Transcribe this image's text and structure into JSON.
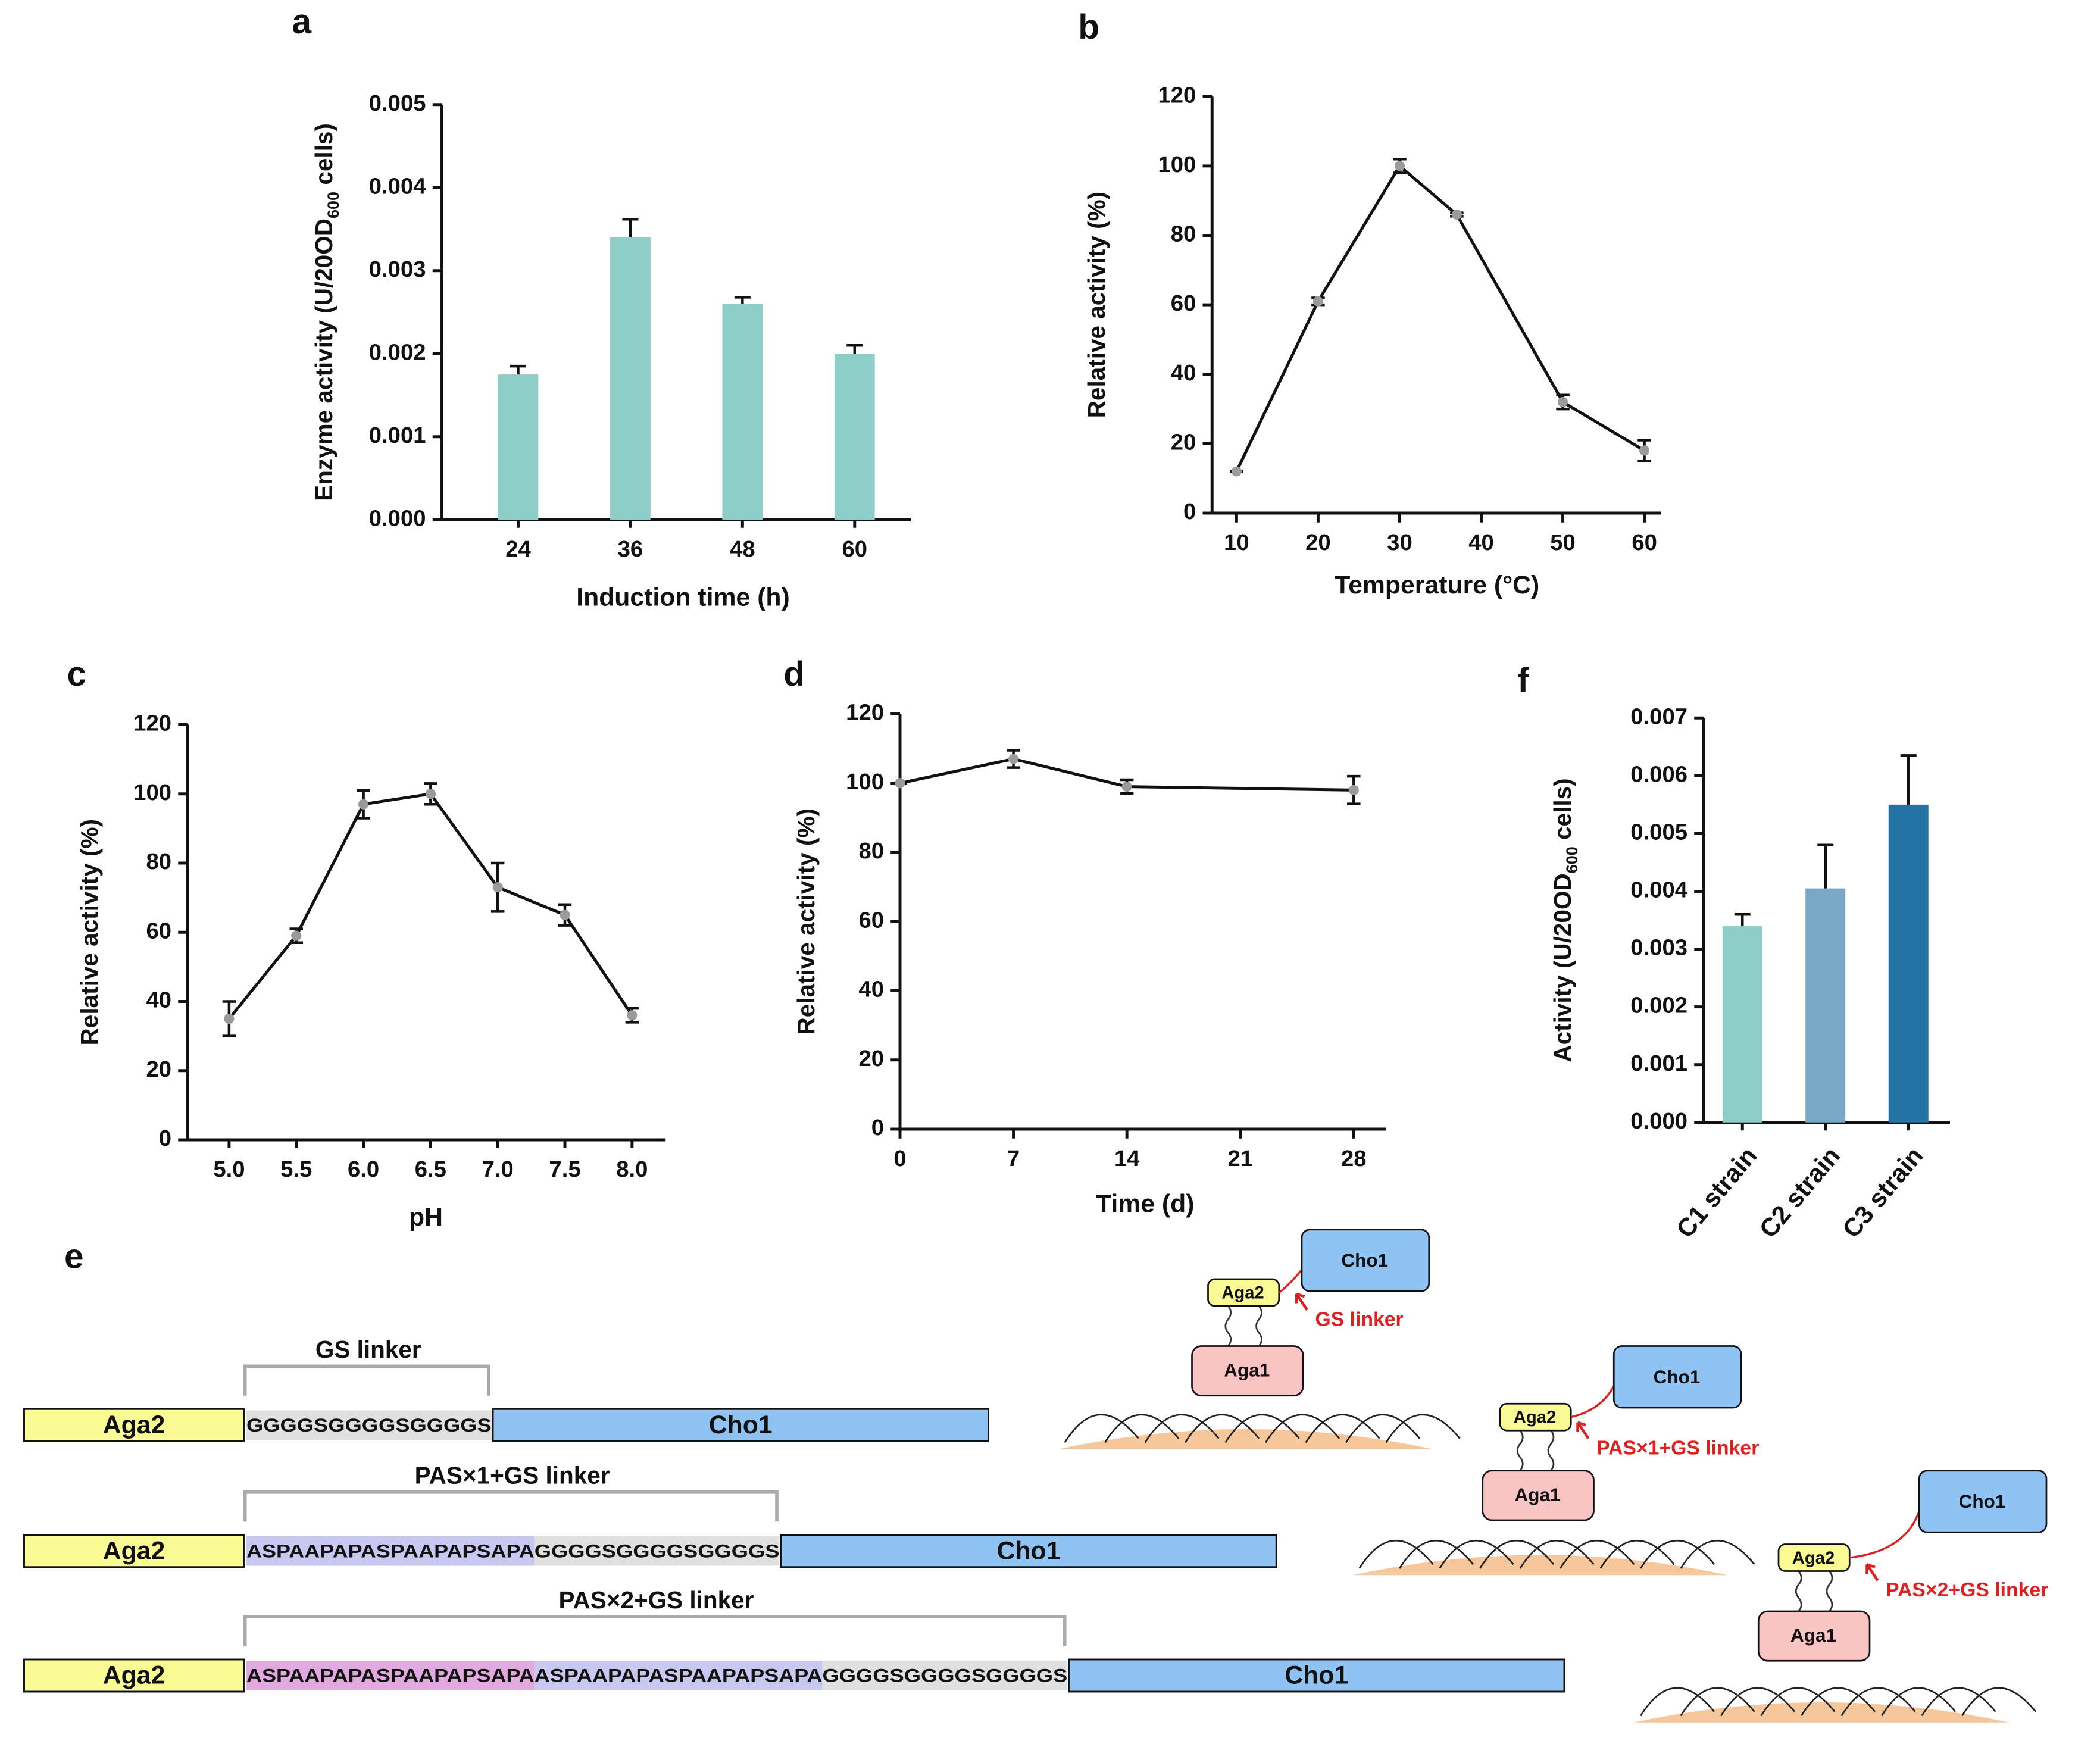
{
  "chart_data": [
    {
      "type": "bar",
      "label": "a",
      "categories": [
        "24",
        "36",
        "48",
        "60"
      ],
      "values": [
        0.00175,
        0.0034,
        0.0026,
        0.002
      ],
      "errors": [
        0.0001,
        0.00022,
        8e-05,
        0.0001
      ],
      "color": "#8ecdc8",
      "ylim": [
        0,
        0.005
      ],
      "yticks": [
        {
          "value": 0,
          "label": "0.000"
        },
        0.001,
        0.002,
        0.003,
        0.004,
        0.005
      ],
      "xlabel": "Induction time (h)",
      "ylabel": [
        "Enzyme activity (U/20OD",
        "600",
        " cells)"
      ]
    },
    {
      "type": "line",
      "label": "b",
      "x": [
        10,
        20,
        30,
        37,
        50,
        60
      ],
      "values": [
        12,
        61,
        100,
        86,
        32,
        18
      ],
      "errors": [
        0,
        1,
        2,
        0.5,
        2,
        3
      ],
      "color": "#111111",
      "xlim": [
        7,
        62
      ],
      "xticks": [
        10,
        20,
        30,
        40,
        50,
        60
      ],
      "ylim": [
        0,
        120
      ],
      "yticks": [
        0,
        20,
        40,
        60,
        80,
        100,
        120
      ],
      "xlabel": "Temperature (°C)",
      "ylabel": [
        "Relative activity (%)"
      ]
    },
    {
      "type": "line",
      "label": "c",
      "categories": [
        "5.0",
        "5.5",
        "6.0",
        "6.5",
        "7.0",
        "7.5",
        "8.0"
      ],
      "values": [
        35,
        59,
        97,
        100,
        73,
        65,
        36
      ],
      "errors": [
        5,
        2,
        4,
        3,
        7,
        3,
        2
      ],
      "color": "#111111",
      "ylim": [
        0,
        120
      ],
      "yticks": [
        0,
        20,
        40,
        60,
        80,
        100,
        120
      ],
      "xlabel": "pH",
      "ylabel": [
        "Relative activity (%)"
      ]
    },
    {
      "type": "line",
      "label": "d",
      "x": [
        0,
        7,
        14,
        28
      ],
      "values": [
        100,
        107,
        99,
        98
      ],
      "errors": [
        0,
        2.5,
        2,
        4
      ],
      "color": "#111111",
      "xlim": [
        0,
        30
      ],
      "xticks": [
        0,
        7,
        14,
        21,
        28
      ],
      "ylim": [
        0,
        120
      ],
      "yticks": [
        0,
        20,
        40,
        60,
        80,
        100,
        120
      ],
      "xlabel": "Time (d)",
      "ylabel": [
        "Relative activity (%)"
      ]
    },
    {
      "type": "bar",
      "label": "f",
      "categories": [
        "C1 strain",
        "C2 strain",
        "C3 strain"
      ],
      "values": [
        0.0034,
        0.00405,
        0.0055
      ],
      "errors": [
        0.0002,
        0.00075,
        0.00085
      ],
      "colors": [
        "#8ecdc8",
        "#7aa9c8",
        "#2273a3"
      ],
      "ylim": [
        0,
        0.007
      ],
      "yticks": [
        {
          "value": 0,
          "label": "0.000"
        },
        0.001,
        0.002,
        0.003,
        0.004,
        0.005,
        0.006,
        0.007
      ],
      "ylabel": [
        "Activity (U/20OD",
        "600",
        " cells)"
      ]
    }
  ],
  "diagram": {
    "label": "e",
    "constructs": [
      {
        "linker_label": "GS linker",
        "aga2": "Aga2",
        "segments": [
          "GGGGSGGGGSGGGGS"
        ],
        "cho1": "Cho1"
      },
      {
        "linker_label": "PAS×1+GS linker",
        "aga2": "Aga2",
        "segments": [
          "ASPAAPAPASPAAPAPSAPA",
          "GGGGSGGGGSGGGGS"
        ],
        "cho1": "Cho1"
      },
      {
        "linker_label": "PAS×2+GS linker",
        "aga2": "Aga2",
        "segments": [
          "ASPAAPAPASPAAPAPSAPA",
          "ASPAAPAPASPAAPAPSAPA",
          "GGGGSGGGGSGGGGS"
        ],
        "cho1": "Cho1"
      }
    ],
    "cartoons": [
      {
        "cho1": "Cho1",
        "aga2": "Aga2",
        "aga1": "Aga1",
        "linker": "GS linker"
      },
      {
        "cho1": "Cho1",
        "aga2": "Aga2",
        "aga1": "Aga1",
        "linker": "PAS×1+GS linker"
      },
      {
        "cho1": "Cho1",
        "aga2": "Aga2",
        "aga1": "Aga1",
        "linker": "PAS×2+GS linker"
      }
    ]
  }
}
